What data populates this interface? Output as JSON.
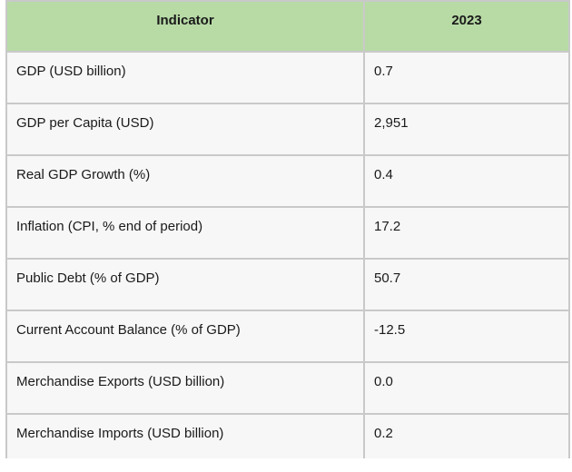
{
  "table": {
    "headers": [
      "Indicator",
      "2023"
    ],
    "rows": [
      [
        "GDP (USD billion)",
        "0.7"
      ],
      [
        "GDP per Capita (USD)",
        "2,951"
      ],
      [
        "Real GDP Growth (%)",
        "0.4"
      ],
      [
        "Inflation (CPI, % end of period)",
        "17.2"
      ],
      [
        "Public Debt (% of GDP)",
        "50.7"
      ],
      [
        "Current Account Balance (% of GDP)",
        "-12.5"
      ],
      [
        "Merchandise Exports (USD billion)",
        "0.0"
      ],
      [
        "Merchandise Imports (USD billion)",
        "0.2"
      ]
    ]
  },
  "colors": {
    "header_bg": "#b8dba6",
    "cell_bg": "#f7f7f7",
    "border": "#c9c9c9"
  }
}
